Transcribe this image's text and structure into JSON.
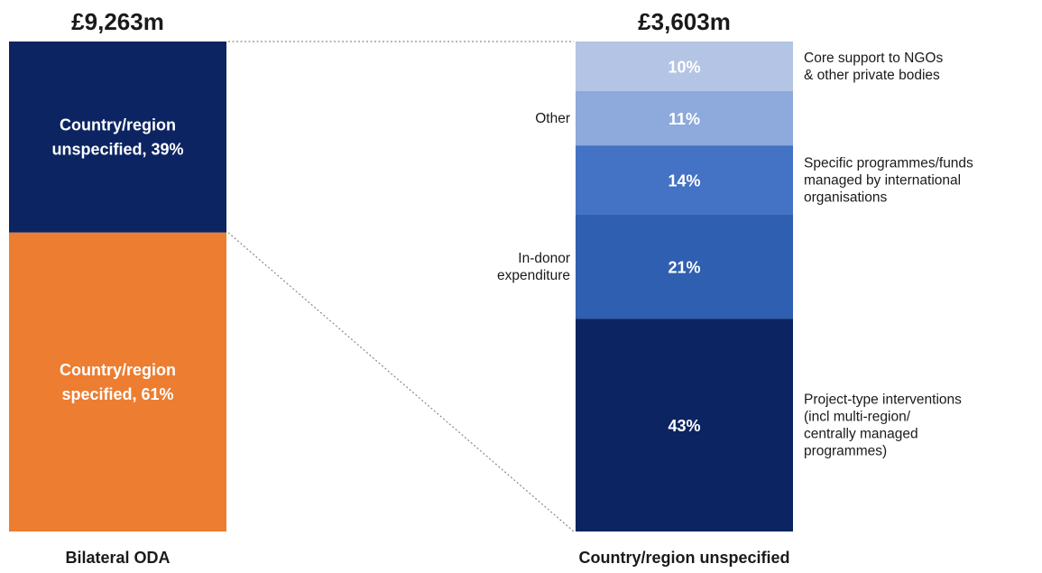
{
  "chart_data": [
    {
      "type": "bar",
      "stacked": true,
      "total_label": "£9,263m",
      "xlabel": "Bilateral ODA",
      "segments": [
        {
          "label_lines": [
            "Country/region",
            "unspecified, 39%"
          ],
          "value": 39,
          "color": "#0c2461"
        },
        {
          "label_lines": [
            "Country/region",
            "specified, 61%"
          ],
          "value": 61,
          "color": "#ed7d31"
        }
      ]
    },
    {
      "type": "bar",
      "stacked": true,
      "total_label": "£3,603m",
      "xlabel": "Country/region unspecified",
      "segments": [
        {
          "value": 10,
          "label": "10%",
          "color": "#b4c4e4",
          "annotation_lines": [
            "Core support to NGOs",
            "& other private bodies"
          ],
          "annotation_side": "right"
        },
        {
          "value": 11,
          "label": "11%",
          "color": "#8ea9db",
          "annotation_lines": [
            "Other"
          ],
          "annotation_side": "left"
        },
        {
          "value": 14,
          "label": "14%",
          "color": "#4472c4",
          "annotation_lines": [
            "Specific programmes/funds",
            "managed by international",
            "organisations"
          ],
          "annotation_side": "right"
        },
        {
          "value": 21,
          "label": "21%",
          "color": "#2f5fb0",
          "annotation_lines": [
            "In-donor",
            "expenditure"
          ],
          "annotation_side": "left"
        },
        {
          "value": 43,
          "label": "43%",
          "color": "#0c2461",
          "annotation_lines": [
            "Project-type interventions",
            "(incl multi-region/",
            "centrally managed",
            "programmes)"
          ],
          "annotation_side": "right"
        }
      ]
    }
  ]
}
